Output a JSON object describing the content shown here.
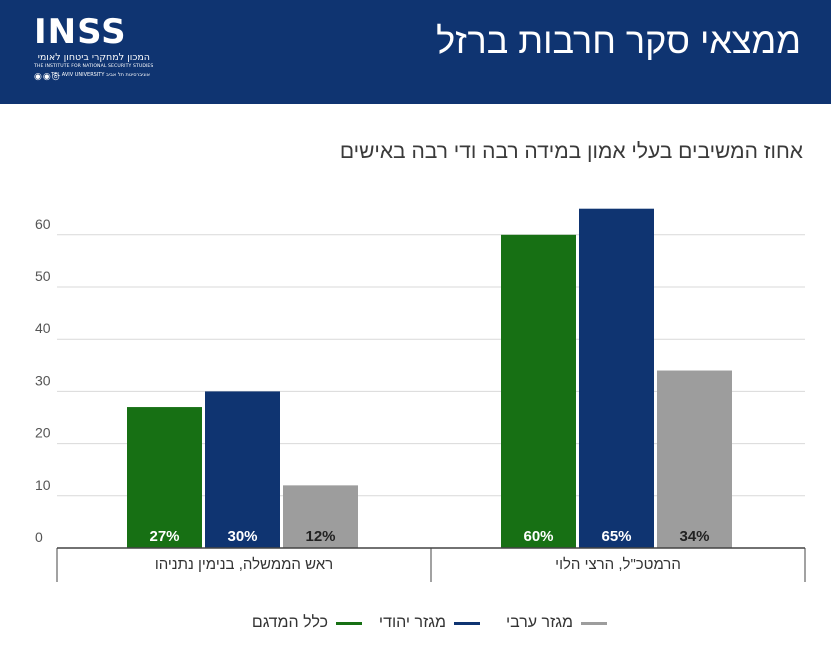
{
  "header": {
    "title": "ממצאי סקר חרבות ברזל",
    "logo": {
      "word": "INSS",
      "hebrew": "המכון למחקרי ביטחון לאומי",
      "english": "THE INSTITUTE FOR NATIONAL SECURITY STUDIES",
      "university": "אוניברסיטת תל אביב TEL AVIV UNIVERSITY",
      "icons": "◉◉◎"
    }
  },
  "colors": {
    "header_bg": "#0f3471",
    "all_sample": "#177014",
    "jewish": "#0f3471",
    "arab": "#9d9d9d"
  },
  "chart_data": {
    "type": "bar",
    "subtitle": "אחוז המשיבים בעלי אמון במידה רבה ודי רבה באישים",
    "categories": [
      "ראש הממשלה, בנימין נתניהו",
      "הרמטכ\"ל, הרצי הלוי"
    ],
    "series": [
      {
        "name": "כלל המדגם",
        "values": [
          27,
          60
        ],
        "labels": [
          "27%",
          "60%"
        ],
        "color": "#177014"
      },
      {
        "name": "מגזר יהודי",
        "values": [
          30,
          65
        ],
        "labels": [
          "30%",
          "65%"
        ],
        "color": "#0f3471"
      },
      {
        "name": "מגזר ערבי",
        "values": [
          12,
          34
        ],
        "labels": [
          "12%",
          "34%"
        ],
        "color": "#9d9d9d"
      }
    ],
    "ylim": [
      0,
      65
    ],
    "yticks": [
      0,
      10,
      20,
      30,
      40,
      50,
      60
    ],
    "grid": true,
    "legend": "bottom"
  }
}
